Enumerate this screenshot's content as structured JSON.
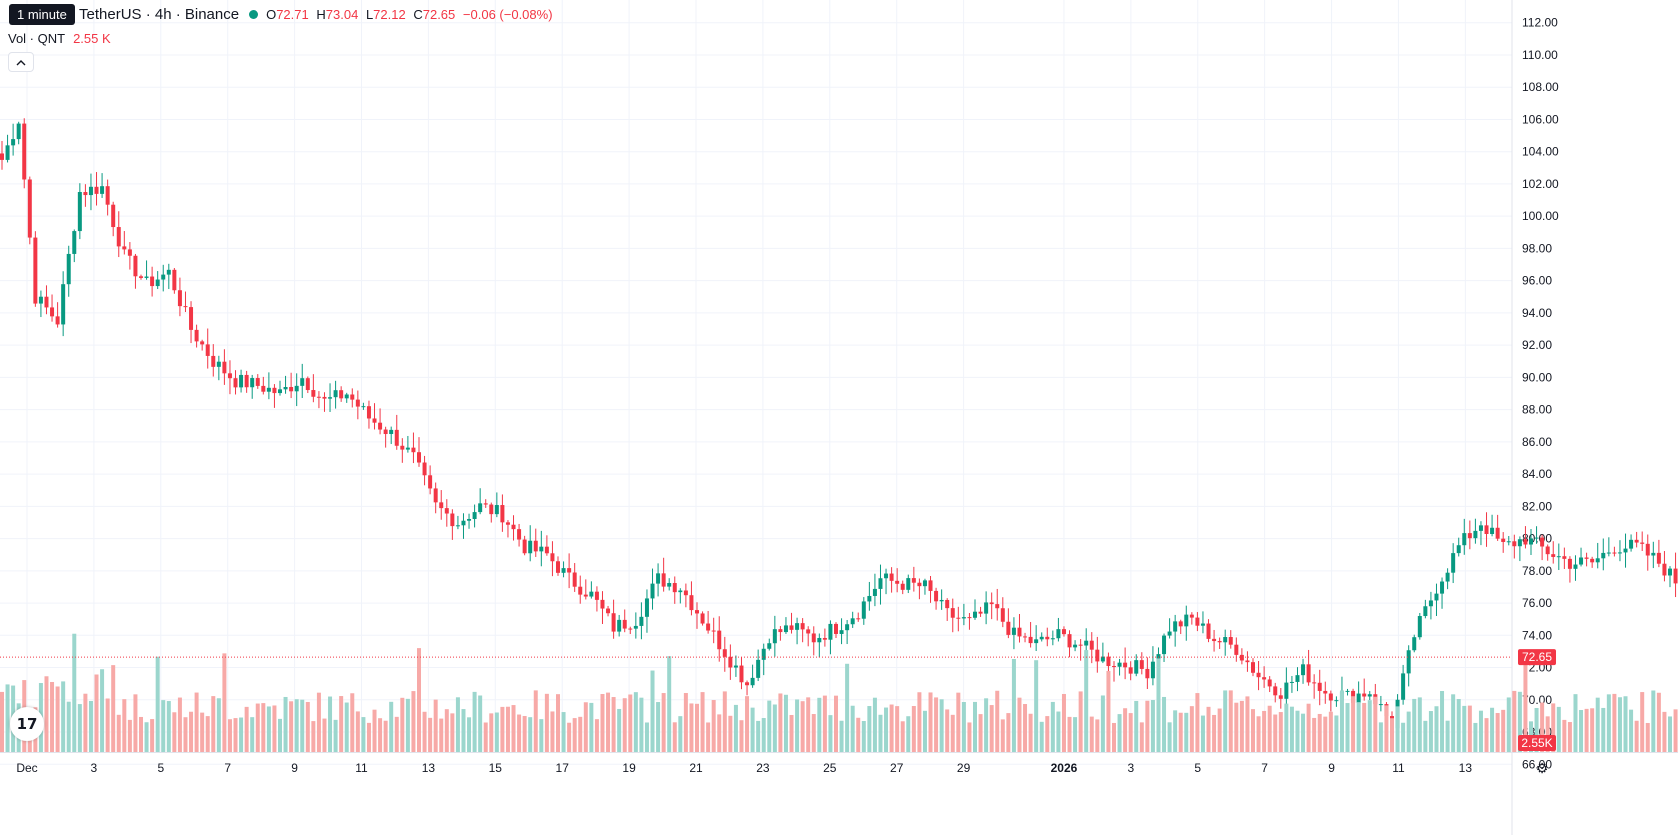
{
  "header": {
    "tooltip": "1 minute",
    "symbol_title": "TetherUS · 4h · Binance",
    "ohlc": [
      {
        "key": "O",
        "value": "72.71"
      },
      {
        "key": "H",
        "value": "73.04"
      },
      {
        "key": "L",
        "value": "72.12"
      },
      {
        "key": "C",
        "value": "72.65"
      }
    ],
    "change": "−0.06 (−0.08%)",
    "volume_label": "Vol · QNT",
    "volume_value": "2.55 K",
    "collapse_icon": "chevron-up-icon"
  },
  "colors": {
    "up": "#089981",
    "down": "#f23645",
    "up_volume": "#9bd6cd",
    "down_volume": "#f7a9a7",
    "grid": "#f0f3fa",
    "price_line": "#f23645"
  },
  "chart_data": {
    "type": "candlestick",
    "x_labels": [
      {
        "day": 1,
        "label": "Dec"
      },
      {
        "day": 3,
        "label": "3"
      },
      {
        "day": 5,
        "label": "5"
      },
      {
        "day": 7,
        "label": "7"
      },
      {
        "day": 9,
        "label": "9"
      },
      {
        "day": 11,
        "label": "11"
      },
      {
        "day": 13,
        "label": "13"
      },
      {
        "day": 15,
        "label": "15"
      },
      {
        "day": 17,
        "label": "17"
      },
      {
        "day": 19,
        "label": "19"
      },
      {
        "day": 21,
        "label": "21"
      },
      {
        "day": 23,
        "label": "23"
      },
      {
        "day": 25,
        "label": "25"
      },
      {
        "day": 27,
        "label": "27"
      },
      {
        "day": 29,
        "label": "29"
      },
      {
        "day": 32,
        "label": "2026"
      },
      {
        "day": 34,
        "label": "3"
      },
      {
        "day": 36,
        "label": "5"
      },
      {
        "day": 38,
        "label": "7"
      },
      {
        "day": 40,
        "label": "9"
      },
      {
        "day": 42,
        "label": "11"
      },
      {
        "day": 44,
        "label": "13"
      }
    ],
    "y_ticks": [
      "66.00",
      "68.00",
      "70.00",
      "72.00",
      "74.00",
      "76.00",
      "78.00",
      "80.00",
      "82.00",
      "84.00",
      "86.00",
      "88.00",
      "90.00",
      "92.00",
      "94.00",
      "96.00",
      "98.00",
      "100.00",
      "102.00",
      "104.00",
      "106.00",
      "108.00",
      "110.00",
      "112.00"
    ],
    "ylim": [
      64.9,
      113.1
    ],
    "last_price": 72.65,
    "last_price_label": "72.65",
    "volume_last_label": "2.55K",
    "close_anchors": [
      [
        0,
        103.5
      ],
      [
        3,
        106
      ],
      [
        6,
        95
      ],
      [
        10,
        93.5
      ],
      [
        14,
        101.5
      ],
      [
        18,
        101.8
      ],
      [
        22,
        97.5
      ],
      [
        26,
        95.8
      ],
      [
        30,
        96.5
      ],
      [
        34,
        93
      ],
      [
        38,
        91
      ],
      [
        42,
        89.8
      ],
      [
        46,
        89.5
      ],
      [
        50,
        89
      ],
      [
        54,
        90
      ],
      [
        58,
        88.5
      ],
      [
        62,
        89
      ],
      [
        66,
        87.5
      ],
      [
        70,
        86.5
      ],
      [
        74,
        85
      ],
      [
        78,
        82
      ],
      [
        82,
        81
      ],
      [
        86,
        82
      ],
      [
        90,
        81.5
      ],
      [
        94,
        79.5
      ],
      [
        98,
        79
      ],
      [
        102,
        77.5
      ],
      [
        106,
        76.5
      ],
      [
        110,
        74.5
      ],
      [
        114,
        75
      ],
      [
        118,
        77.5
      ],
      [
        122,
        77
      ],
      [
        126,
        75
      ],
      [
        130,
        73
      ],
      [
        134,
        71
      ],
      [
        138,
        74
      ],
      [
        142,
        74.5
      ],
      [
        146,
        73.8
      ],
      [
        150,
        74.5
      ],
      [
        154,
        75.5
      ],
      [
        158,
        77.5
      ],
      [
        162,
        77.2
      ],
      [
        166,
        77
      ],
      [
        170,
        75.3
      ],
      [
        174,
        74.8
      ],
      [
        178,
        75.8
      ],
      [
        182,
        74
      ],
      [
        186,
        73.5
      ],
      [
        190,
        74
      ],
      [
        194,
        73.4
      ],
      [
        198,
        72.5
      ],
      [
        202,
        72.2
      ],
      [
        206,
        71.8
      ],
      [
        210,
        74.5
      ],
      [
        214,
        75
      ],
      [
        218,
        73.8
      ],
      [
        222,
        73.2
      ],
      [
        226,
        71.5
      ],
      [
        230,
        70.5
      ],
      [
        234,
        71.8
      ],
      [
        238,
        70.5
      ],
      [
        242,
        70.2
      ],
      [
        246,
        70.5
      ],
      [
        250,
        68.5
      ],
      [
        254,
        74
      ],
      [
        258,
        77
      ],
      [
        262,
        79.5
      ],
      [
        266,
        81
      ],
      [
        270,
        79.5
      ],
      [
        274,
        80
      ],
      [
        278,
        79.2
      ],
      [
        282,
        78.5
      ],
      [
        286,
        78.5
      ],
      [
        290,
        79.5
      ],
      [
        294,
        79.5
      ],
      [
        298,
        78.5
      ],
      [
        302,
        77
      ],
      [
        306,
        75
      ],
      [
        310,
        75
      ],
      [
        314,
        75
      ],
      [
        318,
        75
      ],
      [
        322,
        74.5
      ],
      [
        326,
        74.3
      ],
      [
        330,
        74.5
      ],
      [
        334,
        75.7
      ],
      [
        338,
        74.8
      ],
      [
        341,
        72.65
      ]
    ]
  }
}
